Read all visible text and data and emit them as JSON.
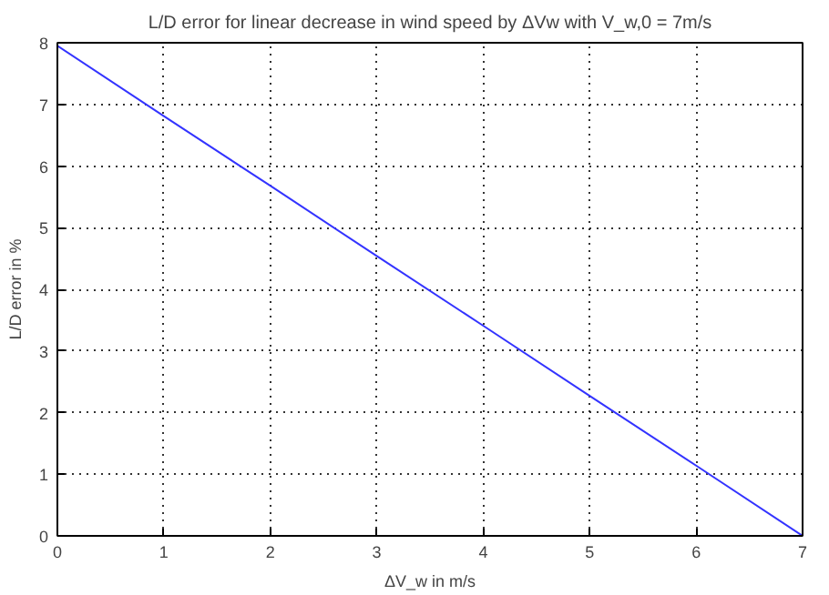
{
  "chart_data": {
    "type": "line",
    "title": "L/D error for linear decrease in wind speed by ΔVw with V_w,0 = 7m/s",
    "xlabel": "ΔV_w in m/s",
    "ylabel": "L/D error in %",
    "x": [
      0,
      1,
      2,
      3,
      4,
      5,
      6,
      7
    ],
    "series": [
      {
        "color": "#3333ff",
        "values": [
          7.95,
          6.81,
          5.68,
          4.54,
          3.41,
          2.27,
          1.14,
          0
        ]
      }
    ],
    "xlim": [
      0,
      7
    ],
    "ylim": [
      0,
      8
    ],
    "xticks": [
      0,
      1,
      2,
      3,
      4,
      5,
      6,
      7
    ],
    "yticks": [
      0,
      1,
      2,
      3,
      4,
      5,
      6,
      7,
      8
    ],
    "grid": true,
    "marker": "none",
    "line_style": "solid"
  }
}
